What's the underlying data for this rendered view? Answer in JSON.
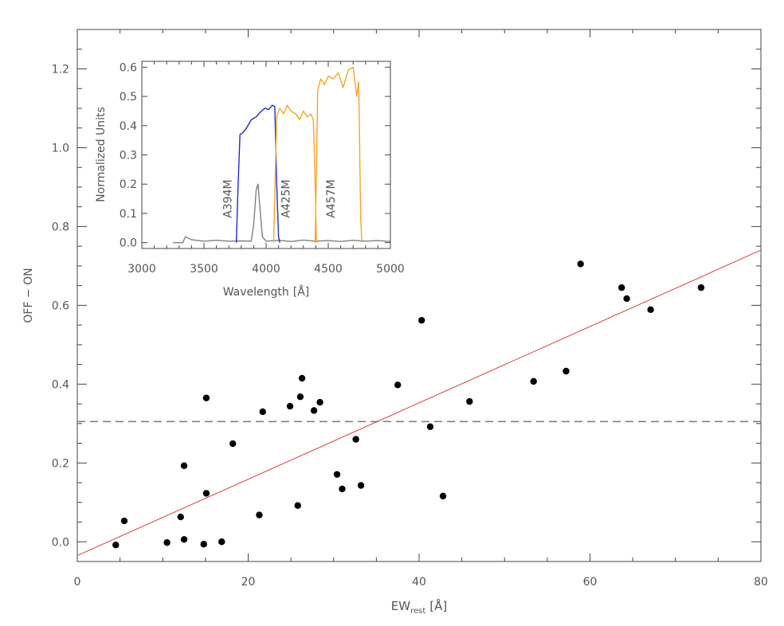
{
  "chart_data": [
    {
      "type": "scatter",
      "xlabel": "EW",
      "xlabel_sub": "rest",
      "xlabel_unit": "[Å]",
      "ylabel": "OFF − ON",
      "xlim": [
        0,
        80
      ],
      "ylim": [
        -0.05,
        1.3
      ],
      "xticks": [
        0,
        20,
        40,
        60,
        80
      ],
      "xtick_labels": [
        "0",
        "20",
        "40",
        "60",
        "80"
      ],
      "yticks": [
        0.0,
        0.2,
        0.4,
        0.6,
        0.8,
        1.0,
        1.2
      ],
      "ytick_labels": [
        "0.0",
        "0.2",
        "0.4",
        "0.6",
        "0.8",
        "1.0",
        "1.2"
      ],
      "grid": false,
      "points": [
        {
          "x": 4.5,
          "y": -0.008
        },
        {
          "x": 5.5,
          "y": 0.053
        },
        {
          "x": 10.5,
          "y": -0.002
        },
        {
          "x": 12.1,
          "y": 0.063
        },
        {
          "x": 12.5,
          "y": 0.193
        },
        {
          "x": 12.5,
          "y": 0.006
        },
        {
          "x": 14.8,
          "y": -0.006
        },
        {
          "x": 15.1,
          "y": 0.365
        },
        {
          "x": 15.1,
          "y": 0.123
        },
        {
          "x": 16.9,
          "y": 0.0
        },
        {
          "x": 18.2,
          "y": 0.249
        },
        {
          "x": 21.3,
          "y": 0.068
        },
        {
          "x": 21.7,
          "y": 0.33
        },
        {
          "x": 24.9,
          "y": 0.344
        },
        {
          "x": 25.8,
          "y": 0.092
        },
        {
          "x": 26.1,
          "y": 0.368
        },
        {
          "x": 26.3,
          "y": 0.415
        },
        {
          "x": 27.7,
          "y": 0.333
        },
        {
          "x": 28.4,
          "y": 0.354
        },
        {
          "x": 30.4,
          "y": 0.171
        },
        {
          "x": 31.0,
          "y": 0.134
        },
        {
          "x": 32.6,
          "y": 0.26
        },
        {
          "x": 33.2,
          "y": 0.143
        },
        {
          "x": 37.5,
          "y": 0.398
        },
        {
          "x": 40.3,
          "y": 0.562
        },
        {
          "x": 41.3,
          "y": 0.292
        },
        {
          "x": 42.8,
          "y": 0.116
        },
        {
          "x": 45.9,
          "y": 0.356
        },
        {
          "x": 53.4,
          "y": 0.407
        },
        {
          "x": 57.2,
          "y": 0.433
        },
        {
          "x": 58.9,
          "y": 0.705
        },
        {
          "x": 63.7,
          "y": 0.645
        },
        {
          "x": 64.3,
          "y": 0.617
        },
        {
          "x": 67.1,
          "y": 0.589
        },
        {
          "x": 73.0,
          "y": 0.645
        }
      ],
      "fit_line": {
        "x": [
          0,
          80
        ],
        "y": [
          -0.035,
          0.74
        ],
        "color": "#d94040"
      },
      "threshold_line": {
        "y": 0.305,
        "style": "dashed",
        "color": "#808080"
      },
      "point_color": "#000000"
    },
    {
      "type": "line",
      "xlabel": "Wavelength",
      "xlabel_unit": "[Å]",
      "ylabel": "Normalized Units",
      "xlim": [
        3000,
        5000
      ],
      "ylim": [
        -0.02,
        0.62
      ],
      "xticks": [
        3000,
        3500,
        4000,
        4500,
        5000
      ],
      "xtick_labels": [
        "3000",
        "3500",
        "4000",
        "4500",
        "5000"
      ],
      "yticks": [
        0.0,
        0.1,
        0.2,
        0.3,
        0.4,
        0.5,
        0.6
      ],
      "ytick_labels": [
        "0.0",
        "0.1",
        "0.2",
        "0.3",
        "0.4",
        "0.5",
        "0.6"
      ],
      "annotations": [
        {
          "text": "A394M",
          "x": 3720,
          "y": 0.15
        },
        {
          "text": "A425M",
          "x": 4190,
          "y": 0.15
        },
        {
          "text": "A457M",
          "x": 4550,
          "y": 0.15
        }
      ],
      "series": [
        {
          "color": "#808080",
          "x": [
            3250,
            3330,
            3350,
            3400,
            3500,
            3600,
            3700,
            3800,
            3880,
            3900,
            3920,
            3935,
            3950,
            3970,
            4000,
            4100,
            4200,
            4300,
            4400,
            4500,
            4600,
            4700,
            4800,
            4900,
            5000
          ],
          "y": [
            0.0,
            0.0,
            0.02,
            0.01,
            0.005,
            0.008,
            0.005,
            0.006,
            0.005,
            0.06,
            0.18,
            0.2,
            0.12,
            0.02,
            0.005,
            0.008,
            0.004,
            0.009,
            0.005,
            0.007,
            0.004,
            0.008,
            0.005,
            0.007,
            0.004
          ]
        },
        {
          "color": "#1f2bd6",
          "x": [
            3760,
            3775,
            3790,
            3810,
            3840,
            3880,
            3920,
            3950,
            3990,
            4020,
            4050,
            4070,
            4085,
            4100,
            4110
          ],
          "y": [
            0.0,
            0.2,
            0.37,
            0.375,
            0.39,
            0.42,
            0.43,
            0.445,
            0.46,
            0.455,
            0.47,
            0.465,
            0.2,
            0.02,
            0.0
          ]
        },
        {
          "color": "#f5a623",
          "x": [
            4060,
            4072,
            4085,
            4110,
            4140,
            4170,
            4200,
            4240,
            4270,
            4300,
            4330,
            4360,
            4380,
            4395,
            4405
          ],
          "y": [
            0.0,
            0.2,
            0.43,
            0.46,
            0.44,
            0.47,
            0.45,
            0.44,
            0.42,
            0.45,
            0.43,
            0.44,
            0.42,
            0.2,
            0.0
          ]
        },
        {
          "color": "#f5a623",
          "x": [
            4395,
            4405,
            4415,
            4440,
            4470,
            4500,
            4540,
            4580,
            4620,
            4660,
            4700,
            4730,
            4745,
            4760,
            4770
          ],
          "y": [
            0.0,
            0.25,
            0.52,
            0.56,
            0.54,
            0.57,
            0.56,
            0.58,
            0.53,
            0.59,
            0.6,
            0.5,
            0.55,
            0.1,
            0.0
          ]
        }
      ]
    }
  ]
}
